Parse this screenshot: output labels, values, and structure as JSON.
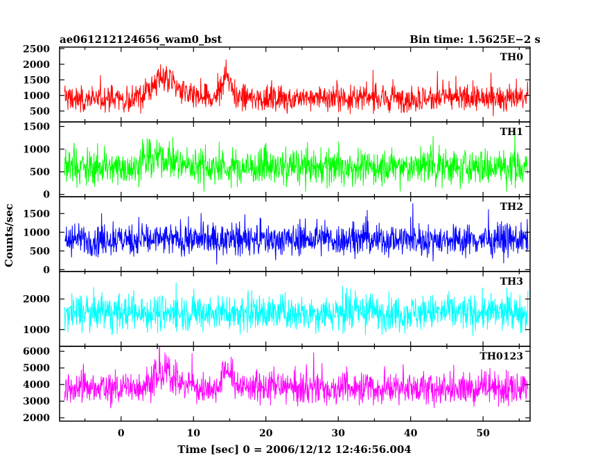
{
  "header": {
    "title": "ae061212124656_wam0_bst",
    "bin_time": "Bin time: 1.5625E−2 s"
  },
  "chart_data": {
    "type": "line",
    "title": "ae061212124656_wam0_bst",
    "subtitle": "Bin time: 1.5625E−2 s",
    "xlabel": "Time [sec] 0 = 2006/12/12 12:46:56.004",
    "ylabel": "Counts/sec",
    "xlim": [
      -8.5,
      56.5
    ],
    "data_range": [
      -7.8,
      56.2
    ],
    "xticks": [
      0,
      10,
      20,
      30,
      40,
      50
    ],
    "grid": false,
    "panels": [
      {
        "name": "TH0",
        "color": "#ff0000",
        "ylim": [
          150,
          2550
        ],
        "yticks": [
          500,
          1000,
          1500,
          2000,
          2500
        ],
        "baseline": 900,
        "spread": 300,
        "bursts": [
          {
            "t": 6.0,
            "amp": 650,
            "width": 1.6
          },
          {
            "t": 14.6,
            "amp": 750,
            "width": 0.6
          }
        ]
      },
      {
        "name": "TH1",
        "color": "#00ff00",
        "ylim": [
          -50,
          1600
        ],
        "yticks": [
          0,
          500,
          1000,
          1500
        ],
        "baseline": 600,
        "spread": 280,
        "bursts": [
          {
            "t": 5.5,
            "amp": 200,
            "width": 2.0
          }
        ]
      },
      {
        "name": "TH2",
        "color": "#0000ff",
        "ylim": [
          -50,
          1950
        ],
        "yticks": [
          0,
          500,
          1000,
          1500
        ],
        "baseline": 800,
        "spread": 300,
        "bursts": []
      },
      {
        "name": "TH3",
        "color": "#00ffff",
        "ylim": [
          450,
          2900
        ],
        "yticks": [
          1000,
          2000
        ],
        "baseline": 1550,
        "spread": 420,
        "bursts": []
      },
      {
        "name": "TH0123",
        "color": "#ff00ff",
        "ylim": [
          1800,
          6300
        ],
        "yticks": [
          2000,
          3000,
          4000,
          5000,
          6000
        ],
        "baseline": 3800,
        "spread": 700,
        "bursts": [
          {
            "t": 6.0,
            "amp": 900,
            "width": 1.6
          },
          {
            "t": 14.6,
            "amp": 1100,
            "width": 0.6
          }
        ]
      }
    ]
  }
}
